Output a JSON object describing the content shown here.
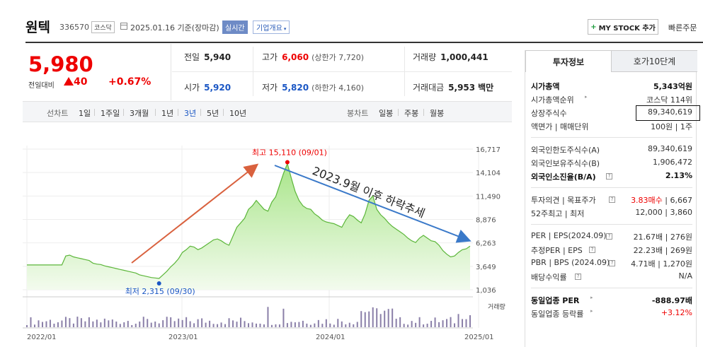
{
  "header": {
    "name": "원텍",
    "code": "336570",
    "market": "코스닥",
    "date": "2025.01.16 기준(장마감)",
    "realtime": "실시간",
    "company_info": "기업개요",
    "mystock": "MY STOCK 추가",
    "quick": "빠른주문"
  },
  "price": {
    "current": "5,980",
    "change_label": "전일대비",
    "change": "40",
    "change_pct": "+0.67%"
  },
  "stats": {
    "prev_label": "전일",
    "prev": "5,940",
    "high_label": "고가",
    "high": "6,060",
    "upper_limit": "(상한가 7,720)",
    "volume_label": "거래량",
    "volume": "1,000,441",
    "open_label": "시가",
    "open": "5,920",
    "low_label": "저가",
    "low": "5,820",
    "lower_limit": "(하한가 4,160)",
    "amount_label": "거래대금",
    "amount": "5,953",
    "amount_unit": "백만"
  },
  "periods": {
    "line_label": "선차트",
    "line_items": [
      "1일",
      "1주일",
      "3개월",
      "1년",
      "3년",
      "5년",
      "10년"
    ],
    "selected": "3년",
    "candle_label": "봉차트",
    "candle_items": [
      "일봉",
      "주봉",
      "월봉"
    ]
  },
  "chart_data": {
    "type": "area",
    "x_labels": [
      "2022/01",
      "2023/01",
      "2024/01",
      "2025/01"
    ],
    "y_ticks": [
      "16,717",
      "14,104",
      "11,490",
      "8,876",
      "6,263",
      "3,649",
      "1,036"
    ],
    "ylim": [
      1036,
      16717
    ],
    "volume_label": "거래량",
    "high_annotation": "최고 15,110 (09/01)",
    "low_annotation": "최저 2,315 (09/30)",
    "trend_annotation": "2023.9월 이후 하락추세",
    "values": [
      3800,
      3800,
      3800,
      3800,
      3800,
      3800,
      3800,
      3800,
      3800,
      3800,
      4800,
      4900,
      4700,
      4600,
      4500,
      4400,
      4300,
      4000,
      3900,
      3850,
      3700,
      3600,
      3500,
      3400,
      3300,
      3200,
      3100,
      3000,
      2900,
      2700,
      2600,
      2500,
      2400,
      2350,
      2300,
      2700,
      3100,
      3600,
      4000,
      4500,
      5200,
      5500,
      5900,
      5800,
      5500,
      5700,
      6000,
      6300,
      6600,
      6700,
      6500,
      6200,
      6000,
      7000,
      8000,
      8500,
      9000,
      10000,
      10400,
      11000,
      10500,
      10000,
      9800,
      10800,
      11400,
      12700,
      14000,
      15100,
      13500,
      12000,
      11000,
      10400,
      10100,
      10000,
      9500,
      9200,
      8800,
      8600,
      8500,
      8400,
      8200,
      8000,
      8800,
      9400,
      9200,
      8800,
      8500,
      9500,
      11000,
      11500,
      10000,
      9400,
      9000,
      8500,
      8100,
      7800,
      7500,
      7200,
      6800,
      6500,
      6300,
      6800,
      7100,
      6800,
      6500,
      6400,
      6000,
      5400,
      5000,
      4700,
      4800,
      5200,
      5500,
      5600,
      5900
    ]
  },
  "right_panel": {
    "tab_active": "투자정보",
    "tab_inactive": "호가10단계",
    "rows1": [
      {
        "l": "시가총액",
        "r": "5,343억원",
        "bold": true
      },
      {
        "l": "시가총액순위",
        "r": "코스닥 114위"
      },
      {
        "l": "상장주식수",
        "r": "89,340,619"
      },
      {
        "l": "액면가 | 매매단위",
        "r": "100원 | 1주"
      }
    ],
    "rows2": [
      {
        "l": "외국인한도주식수(A)",
        "r": "89,340,619"
      },
      {
        "l": "외국인보유주식수(B)",
        "r": "1,906,472"
      },
      {
        "l": "외국인소진율(B/A)",
        "r": "2.13%",
        "bold": true
      }
    ],
    "rows3": [
      {
        "l": "투자의견 | 목표주가",
        "r_red": "3.83매수",
        "r": " | 6,667"
      },
      {
        "l": "52주최고 | 최저",
        "r": "12,000 | 3,860"
      }
    ],
    "rows4": [
      {
        "l": "PER | EPS(2024.09)",
        "r": "21.67배 | 276원"
      },
      {
        "l": "추정PER | EPS",
        "r": "22.23배 | 269원"
      },
      {
        "l": "PBR | BPS (2024.09)",
        "r": "4.71배 | 1,270원"
      },
      {
        "l": "배당수익률",
        "r": "N/A"
      }
    ],
    "rows5": [
      {
        "l": "동일업종 PER",
        "r": "-888.97배",
        "bold": true
      },
      {
        "l": "동일업종 등락률",
        "r": "+3.12%"
      }
    ]
  }
}
